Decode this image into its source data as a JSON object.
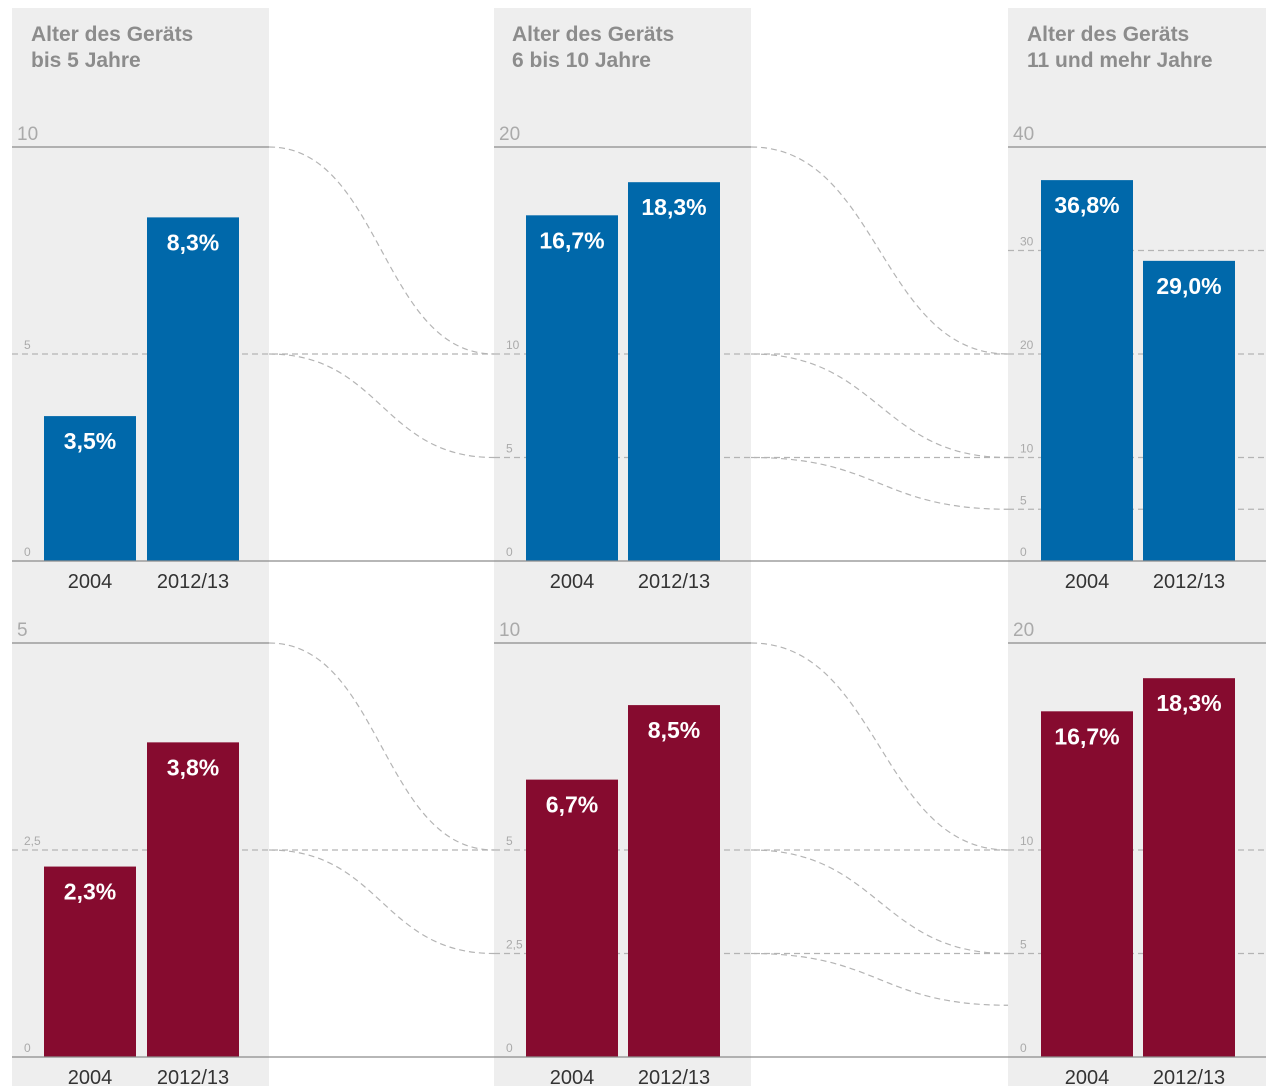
{
  "columns": [
    {
      "title_line1": "Alter des Geräts",
      "title_line2": "bis 5 Jahre"
    },
    {
      "title_line1": "Alter des Geräts",
      "title_line2": "6 bis 10 Jahre"
    },
    {
      "title_line1": "Alter des Geräts",
      "title_line2": "11 und mehr Jahre"
    }
  ],
  "colors": {
    "blue": "#0068aa",
    "red": "#860b2f",
    "panel_bg": "#eeeeee",
    "axis": "#8c8c8c",
    "dashed": "#b4b4b4",
    "tick_text": "#aaaaaa",
    "label": "#333333"
  },
  "chart_data": [
    {
      "type": "bar",
      "row": "top",
      "column": 0,
      "color": "blue",
      "categories": [
        "2004",
        "2012/13"
      ],
      "values": [
        3.5,
        8.3
      ],
      "value_labels": [
        "3,5%",
        "8,3%"
      ],
      "ylim": [
        0,
        10
      ],
      "top_tick_label": "10",
      "ticks": [
        {
          "value": 5,
          "label": "5"
        },
        {
          "value": 0,
          "label": "0"
        }
      ]
    },
    {
      "type": "bar",
      "row": "top",
      "column": 1,
      "color": "blue",
      "categories": [
        "2004",
        "2012/13"
      ],
      "values": [
        16.7,
        18.3
      ],
      "value_labels": [
        "16,7%",
        "18,3%"
      ],
      "ylim": [
        0,
        20
      ],
      "top_tick_label": "20",
      "ticks": [
        {
          "value": 10,
          "label": "10"
        },
        {
          "value": 5,
          "label": "5"
        },
        {
          "value": 0,
          "label": "0"
        }
      ]
    },
    {
      "type": "bar",
      "row": "top",
      "column": 2,
      "color": "blue",
      "categories": [
        "2004",
        "2012/13"
      ],
      "values": [
        36.8,
        29.0
      ],
      "value_labels": [
        "36,8%",
        "29,0%"
      ],
      "ylim": [
        0,
        40
      ],
      "top_tick_label": "40",
      "ticks": [
        {
          "value": 30,
          "label": "30"
        },
        {
          "value": 20,
          "label": "20"
        },
        {
          "value": 10,
          "label": "10"
        },
        {
          "value": 5,
          "label": "5"
        },
        {
          "value": 0,
          "label": "0"
        }
      ]
    },
    {
      "type": "bar",
      "row": "bottom",
      "column": 0,
      "color": "red",
      "categories": [
        "2004",
        "2012/13"
      ],
      "values": [
        2.3,
        3.8
      ],
      "value_labels": [
        "2,3%",
        "3,8%"
      ],
      "ylim": [
        0,
        5
      ],
      "top_tick_label": "5",
      "ticks": [
        {
          "value": 2.5,
          "label": "2,5"
        },
        {
          "value": 0,
          "label": "0"
        }
      ]
    },
    {
      "type": "bar",
      "row": "bottom",
      "column": 1,
      "color": "red",
      "categories": [
        "2004",
        "2012/13"
      ],
      "values": [
        6.7,
        8.5
      ],
      "value_labels": [
        "6,7%",
        "8,5%"
      ],
      "ylim": [
        0,
        10
      ],
      "top_tick_label": "10",
      "ticks": [
        {
          "value": 5,
          "label": "5"
        },
        {
          "value": 2.5,
          "label": "2,5"
        },
        {
          "value": 0,
          "label": "0"
        }
      ]
    },
    {
      "type": "bar",
      "row": "bottom",
      "column": 2,
      "color": "red",
      "categories": [
        "2004",
        "2012/13"
      ],
      "values": [
        16.7,
        18.3
      ],
      "value_labels": [
        "16,7%",
        "18,3%"
      ],
      "ylim": [
        0,
        20
      ],
      "top_tick_label": "20",
      "ticks": [
        {
          "value": 10,
          "label": "10"
        },
        {
          "value": 5,
          "label": "5"
        },
        {
          "value": 0,
          "label": "0"
        }
      ]
    }
  ],
  "scale_links": [
    {
      "row": "top",
      "from_column": 0,
      "from_value": 10,
      "to_value": 10
    },
    {
      "row": "top",
      "from_column": 0,
      "from_value": 5,
      "to_value": 5
    },
    {
      "row": "top",
      "from_column": 1,
      "from_value": 20,
      "to_value": 20
    },
    {
      "row": "top",
      "from_column": 1,
      "from_value": 10,
      "to_value": 10
    },
    {
      "row": "top",
      "from_column": 1,
      "from_value": 5,
      "to_value": 5
    },
    {
      "row": "bottom",
      "from_column": 0,
      "from_value": 5,
      "to_value": 5
    },
    {
      "row": "bottom",
      "from_column": 0,
      "from_value": 2.5,
      "to_value": 2.5
    },
    {
      "row": "bottom",
      "from_column": 1,
      "from_value": 10,
      "to_value": 10
    },
    {
      "row": "bottom",
      "from_column": 1,
      "from_value": 5,
      "to_value": 5
    },
    {
      "row": "bottom",
      "from_column": 1,
      "from_value": 2.5,
      "to_value": 2.5
    }
  ]
}
